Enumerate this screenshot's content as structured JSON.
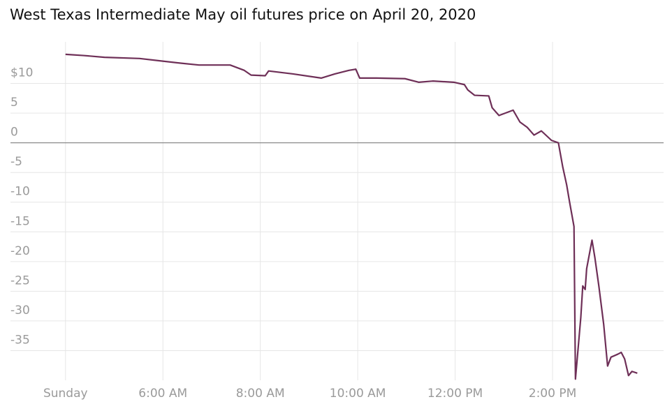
{
  "chart_data": {
    "type": "line",
    "title": "West Texas Intermediate May oil futures price on April 20, 2020",
    "x": [
      4.0,
      4.37,
      4.8,
      5.52,
      5.95,
      6.38,
      6.74,
      7.38,
      7.67,
      7.81,
      8.1,
      8.17,
      8.67,
      9.25,
      9.53,
      9.82,
      9.96,
      10.04,
      10.39,
      10.97,
      11.25,
      11.54,
      11.97,
      12.19,
      12.26,
      12.4,
      12.69,
      12.76,
      12.9,
      13.19,
      13.33,
      13.48,
      13.62,
      13.77,
      13.98,
      14.12,
      14.21,
      14.29,
      14.35,
      14.44,
      14.47,
      14.58,
      14.62,
      14.67,
      14.7,
      14.81,
      14.87,
      14.95,
      15.05,
      15.13,
      15.2,
      15.34,
      15.41,
      15.48,
      15.56,
      15.63,
      15.74
    ],
    "series": [
      {
        "color": "#6e2f57",
        "values": [
          14.9,
          14.7,
          14.4,
          14.2,
          13.8,
          13.4,
          13.1,
          13.1,
          12.2,
          11.4,
          11.3,
          12.1,
          11.6,
          10.9,
          11.6,
          12.2,
          12.4,
          10.9,
          10.9,
          10.8,
          10.2,
          10.4,
          10.2,
          9.8,
          8.9,
          8.0,
          7.9,
          5.9,
          4.6,
          5.5,
          3.5,
          2.6,
          1.3,
          2.0,
          0.4,
          0.0,
          -4.1,
          -7.1,
          -10.0,
          -14.1,
          -39.8,
          -29.4,
          -24.1,
          -24.7,
          -21.2,
          -16.4,
          -19.4,
          -24.1,
          -30.6,
          -37.6,
          -36.1,
          -35.6,
          -35.3,
          -36.4,
          -39.2,
          -38.5,
          -38.8
        ]
      }
    ],
    "xlim": [
      2.87,
      16.28
    ],
    "xticks": [
      {
        "value": 4,
        "label": "Sunday"
      },
      {
        "value": 6,
        "label": "6:00 AM"
      },
      {
        "value": 8,
        "label": "8:00 AM"
      },
      {
        "value": 10,
        "label": "10:00 AM"
      },
      {
        "value": 12,
        "label": "12:00 PM"
      },
      {
        "value": 14,
        "label": "2:00 PM"
      }
    ],
    "ylim": [
      -40,
      17
    ],
    "yticks": [
      {
        "value": 10,
        "label": "$10"
      },
      5,
      0,
      -5,
      -10,
      -15,
      -20,
      -25,
      -30,
      -35
    ],
    "grid": true
  }
}
